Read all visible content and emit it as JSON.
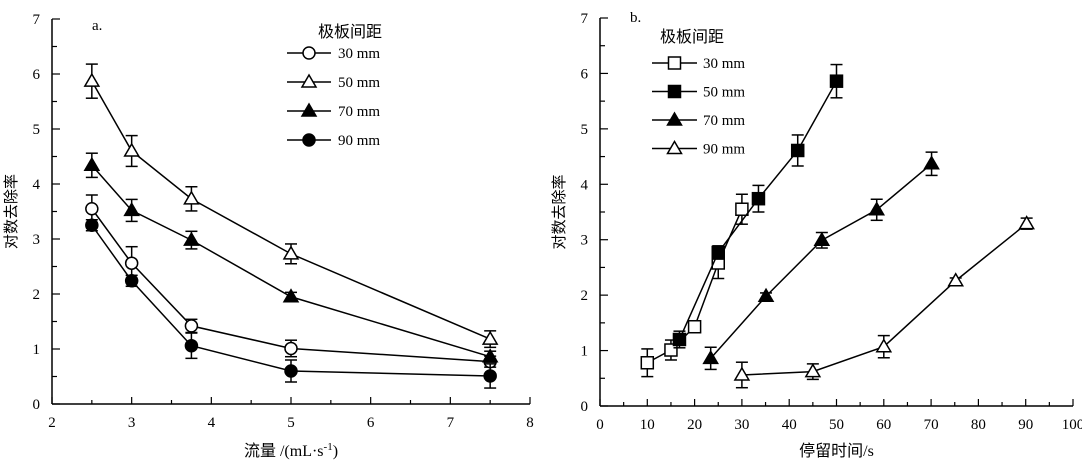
{
  "chart_data": [
    {
      "type": "line",
      "panel_label": "a.",
      "xlabel": "流量 /(mL·s",
      "xlabel_sup": "-1",
      "xlabel_end": ")",
      "ylabel": "对数去除率",
      "xlim": [
        2,
        8
      ],
      "ylim": [
        0,
        7
      ],
      "xticks": [
        2,
        3,
        4,
        5,
        6,
        7,
        8
      ],
      "yticks": [
        0,
        1,
        2,
        3,
        4,
        5,
        6,
        7
      ],
      "legend_title": "极板间距",
      "legend_position": "top-right",
      "series": [
        {
          "name": "30 mm",
          "marker": "circle-open",
          "x": [
            2.5,
            3,
            3.75,
            5,
            7.5
          ],
          "y": [
            3.55,
            2.56,
            1.42,
            1.01,
            0.77
          ],
          "err": [
            0.25,
            0.3,
            0.12,
            0.15,
            0.1
          ]
        },
        {
          "name": "50 mm",
          "marker": "triangle-open",
          "x": [
            2.5,
            3,
            3.75,
            5,
            7.5
          ],
          "y": [
            5.87,
            4.6,
            3.73,
            2.73,
            1.18
          ],
          "err": [
            0.31,
            0.28,
            0.22,
            0.18,
            0.15
          ]
        },
        {
          "name": "70 mm",
          "marker": "triangle-filled",
          "x": [
            2.5,
            3,
            3.75,
            5,
            7.5
          ],
          "y": [
            4.34,
            3.52,
            2.98,
            1.95,
            0.86
          ],
          "err": [
            0.22,
            0.2,
            0.16,
            0.08,
            0.1
          ]
        },
        {
          "name": "90 mm",
          "marker": "circle-filled",
          "x": [
            2.5,
            3,
            3.75,
            5,
            7.5
          ],
          "y": [
            3.25,
            2.24,
            1.06,
            0.6,
            0.51
          ],
          "err": [
            0.1,
            0.1,
            0.23,
            0.2,
            0.22
          ]
        }
      ]
    },
    {
      "type": "line",
      "panel_label": "b.",
      "xlabel": "停留时间/s",
      "ylabel": "对数去除率",
      "xlim": [
        0,
        100
      ],
      "ylim": [
        0,
        7
      ],
      "xticks": [
        0,
        10,
        20,
        30,
        40,
        50,
        60,
        70,
        80,
        90,
        100
      ],
      "yticks": [
        0,
        1,
        2,
        3,
        4,
        5,
        6,
        7
      ],
      "legend_title": "极板间距",
      "legend_position": "top-left",
      "series": [
        {
          "name": "30 mm",
          "marker": "square-open",
          "x": [
            10,
            15,
            20,
            25,
            30
          ],
          "y": [
            0.78,
            1.01,
            1.43,
            2.58,
            3.55
          ],
          "err": [
            0.25,
            0.18,
            0.1,
            0.28,
            0.27
          ]
        },
        {
          "name": "50 mm",
          "marker": "square-filled",
          "x": [
            16.8,
            25,
            33.5,
            41.8,
            50
          ],
          "y": [
            1.2,
            2.77,
            3.74,
            4.61,
            5.86
          ],
          "err": [
            0.15,
            0.12,
            0.24,
            0.28,
            0.3
          ]
        },
        {
          "name": "70 mm",
          "marker": "triangle-filled",
          "x": [
            23.4,
            35.1,
            46.9,
            58.5,
            70.1
          ],
          "y": [
            0.86,
            1.98,
            2.99,
            3.54,
            4.37
          ],
          "err": [
            0.2,
            0.06,
            0.14,
            0.19,
            0.21
          ]
        },
        {
          "name": "90 mm",
          "marker": "triangle-open",
          "x": [
            30,
            45,
            60,
            75.2,
            90.2
          ],
          "y": [
            0.56,
            0.62,
            1.07,
            2.26,
            3.29
          ],
          "err": [
            0.23,
            0.14,
            0.2,
            0.05,
            0.1
          ]
        }
      ]
    }
  ]
}
